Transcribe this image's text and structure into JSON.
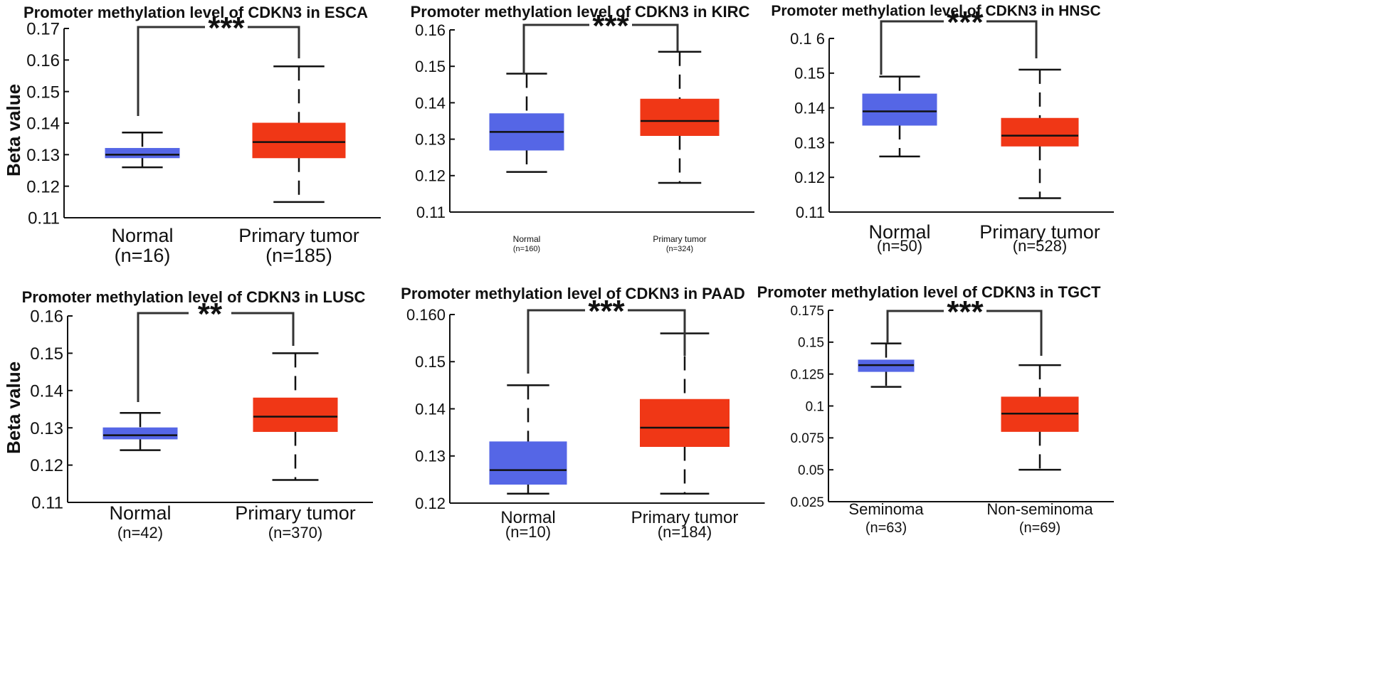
{
  "figure": {
    "ylabel": "Beta value"
  },
  "chart_data": [
    {
      "type": "box",
      "title": "Promoter methylation level of CDKN3 in ESCA",
      "ylabel": "Beta value",
      "ylim": [
        0.11,
        0.17
      ],
      "yticks": [
        "0.11",
        "0.12",
        "0.13",
        "0.14",
        "0.15",
        "0.16",
        "0.17"
      ],
      "significance": "***",
      "groups": [
        {
          "name": "Normal",
          "n_label": "(n=16)",
          "color": "#5566e6",
          "min": 0.126,
          "q1": 0.129,
          "median": 0.13,
          "q3": 0.132,
          "max": 0.137
        },
        {
          "name": "Primary tumor",
          "n_label": "(n=185)",
          "color": "#f03716",
          "min": 0.115,
          "q1": 0.129,
          "median": 0.134,
          "q3": 0.14,
          "max": 0.158
        }
      ]
    },
    {
      "type": "box",
      "title": "Promoter methylation level of CDKN3 in KIRC",
      "ylabel": "",
      "ylim": [
        0.11,
        0.16
      ],
      "yticks": [
        "0.11",
        "0.12",
        "0.13",
        "0.14",
        "0.15",
        "0.16"
      ],
      "significance": "***",
      "groups": [
        {
          "name": "Normal",
          "n_label": "(n=160)",
          "color": "#5566e6",
          "min": 0.121,
          "q1": 0.127,
          "median": 0.132,
          "q3": 0.137,
          "max": 0.148
        },
        {
          "name": "Primary tumor",
          "n_label": "(n=324)",
          "color": "#f03716",
          "min": 0.118,
          "q1": 0.131,
          "median": 0.135,
          "q3": 0.141,
          "max": 0.154
        }
      ]
    },
    {
      "type": "box",
      "title": "Promoter methylation level of CDKN3 in HNSC",
      "ylabel": "",
      "ylim": [
        0.11,
        0.16
      ],
      "yticks": [
        "0.11",
        "0.12",
        "0.13",
        "0.14",
        "0.15",
        "0.1 6"
      ],
      "significance": "***",
      "groups": [
        {
          "name": "Normal",
          "n_label": "(n=50)",
          "color": "#5566e6",
          "min": 0.126,
          "q1": 0.135,
          "median": 0.139,
          "q3": 0.144,
          "max": 0.149
        },
        {
          "name": "Primary tumor",
          "n_label": "(n=528)",
          "color": "#f03716",
          "min": 0.114,
          "q1": 0.129,
          "median": 0.132,
          "q3": 0.137,
          "max": 0.151
        }
      ]
    },
    {
      "type": "box",
      "title": "Promoter methylation level of CDKN3 in LUSC",
      "ylabel": "Beta value",
      "ylim": [
        0.11,
        0.16
      ],
      "yticks": [
        "0.11",
        "0.12",
        "0.13",
        "0.14",
        "0.15",
        "0.16"
      ],
      "significance": "**",
      "groups": [
        {
          "name": "Normal",
          "n_label": "(n=42)",
          "color": "#5566e6",
          "min": 0.124,
          "q1": 0.127,
          "median": 0.128,
          "q3": 0.13,
          "max": 0.134
        },
        {
          "name": "Primary tumor",
          "n_label": "(n=370)",
          "color": "#f03716",
          "min": 0.116,
          "q1": 0.129,
          "median": 0.133,
          "q3": 0.138,
          "max": 0.15
        }
      ]
    },
    {
      "type": "box",
      "title": "Promoter methylation level of CDKN3 in PAAD",
      "ylabel": "",
      "ylim": [
        0.12,
        0.16
      ],
      "yticks": [
        "0.12",
        "0.13",
        "0.14",
        "0.15",
        "0.160"
      ],
      "significance": "***",
      "groups": [
        {
          "name": "Normal",
          "n_label": "(n=10)",
          "color": "#5566e6",
          "min": 0.122,
          "q1": 0.124,
          "median": 0.127,
          "q3": 0.133,
          "max": 0.145
        },
        {
          "name": "Primary tumor",
          "n_label": "(n=184)",
          "color": "#f03716",
          "min": 0.122,
          "q1": 0.132,
          "median": 0.136,
          "q3": 0.142,
          "max": 0.156
        }
      ]
    },
    {
      "type": "box",
      "title": "Promoter methylation level of CDKN3 in TGCT",
      "ylabel": "",
      "ylim": [
        0.025,
        0.175
      ],
      "yticks": [
        "0.025",
        "0.05",
        "0.075",
        "0.1",
        "0.125",
        "0.15",
        "0.175"
      ],
      "significance": "***",
      "groups": [
        {
          "name": "Seminoma",
          "n_label": "(n=63)",
          "color": "#5566e6",
          "min": 0.115,
          "q1": 0.127,
          "median": 0.132,
          "q3": 0.136,
          "max": 0.149
        },
        {
          "name": "Non-seminoma",
          "n_label": "(n=69)",
          "color": "#f03716",
          "min": 0.05,
          "q1": 0.08,
          "median": 0.094,
          "q3": 0.107,
          "max": 0.132
        }
      ]
    }
  ]
}
